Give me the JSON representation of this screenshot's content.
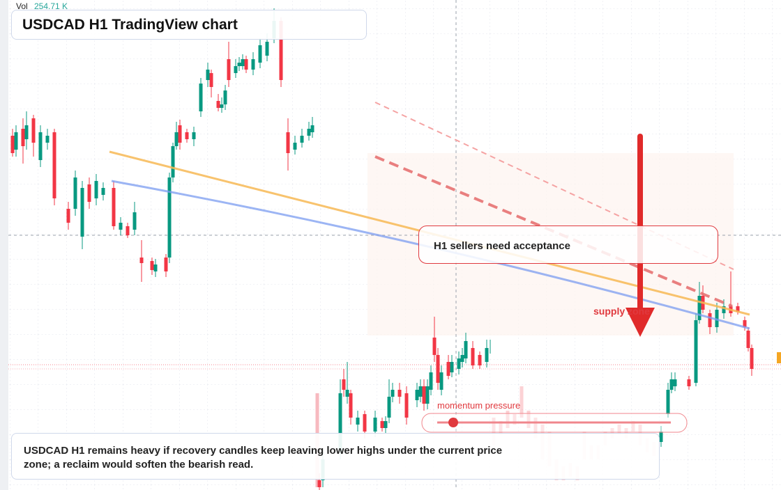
{
  "header": {
    "vol_label": "Vol",
    "vol_value": "254.71 K",
    "title": "USDCAD H1 TradingView chart"
  },
  "annotations": {
    "callout": "H1 sellers need acceptance",
    "zone_label": "supply zone",
    "momentum_label": "momentum pressure"
  },
  "footer": {
    "text": "USDCAD H1 remains heavy if recovery candles keep leaving lower highs under the current price zone; a reclaim would soften the bearish read."
  }
}
